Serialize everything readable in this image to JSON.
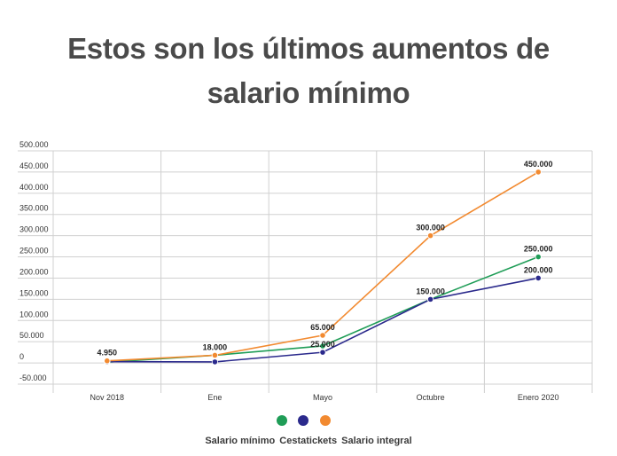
{
  "title": {
    "line1": "Estos son los últimos aumentos de",
    "line2": "salario mínimo"
  },
  "chart_data": {
    "type": "line",
    "categories": [
      "Nov 2018",
      "Ene",
      "Mayo",
      "Octubre",
      "Enero 2020"
    ],
    "y_ticks": [
      "500.000",
      "450.000",
      "400.000",
      "350.000",
      "300.000",
      "250.000",
      "200.000",
      "150.000",
      "100.000",
      "50.000",
      "0",
      "-50.000"
    ],
    "ylim": [
      -50000,
      500000
    ],
    "grid": true,
    "legend_position": "bottom",
    "series": [
      {
        "name": "Salario mínimo",
        "color": "#1f9d57",
        "values": [
          1800,
          18000,
          40000,
          150000,
          250000
        ],
        "labels": [
          "",
          "",
          "",
          "",
          "250.000"
        ]
      },
      {
        "name": "Cestatickets",
        "color": "#2b2a8c",
        "values": [
          3000,
          2500,
          25000,
          150000,
          200000
        ],
        "labels": [
          "",
          "",
          "25.000",
          "150.000",
          "200.000"
        ]
      },
      {
        "name": "Salario integral",
        "color": "#f28a30",
        "values": [
          4950,
          18000,
          65000,
          300000,
          450000
        ],
        "labels": [
          "4.950",
          "18.000",
          "65.000",
          "300.000",
          "450.000"
        ]
      }
    ]
  }
}
